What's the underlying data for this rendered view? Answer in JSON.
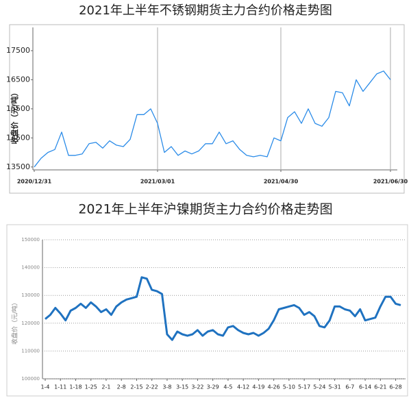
{
  "chart_data": [
    {
      "type": "line",
      "title": "2021年上半年不锈钢期货主力合约价格走势图",
      "ylabel": "收盘价（元/吨）",
      "color": "#2a8be8",
      "ylim": [
        13400,
        18300
      ],
      "yticks": [
        13500,
        14500,
        15500,
        16500,
        17500
      ],
      "grid": true,
      "categories": [
        "2020/12/31",
        null,
        null,
        null,
        null,
        null,
        null,
        null,
        null,
        null,
        null,
        null,
        null,
        null,
        null,
        null,
        null,
        null,
        "2021/03/01",
        null,
        null,
        null,
        null,
        null,
        null,
        null,
        null,
        null,
        null,
        null,
        null,
        null,
        null,
        null,
        null,
        null,
        "2021/04/30",
        null,
        null,
        null,
        null,
        null,
        null,
        null,
        null,
        null,
        null,
        null,
        null,
        null,
        null,
        null,
        "2021/06/30"
      ],
      "values": [
        13500,
        13800,
        14000,
        14100,
        14700,
        13900,
        13900,
        13950,
        14300,
        14350,
        14150,
        14400,
        14250,
        14200,
        14450,
        15300,
        15300,
        15500,
        15000,
        14000,
        14200,
        13900,
        14050,
        13950,
        14050,
        14300,
        14300,
        14700,
        14300,
        14400,
        14100,
        13900,
        13850,
        13900,
        13850,
        14500,
        14400,
        15200,
        15400,
        15000,
        15500,
        15000,
        14900,
        15200,
        16100,
        16050,
        15600,
        16500,
        16100,
        16400,
        16700,
        16800,
        16500
      ]
    },
    {
      "type": "line",
      "title": "2021年上半年沪镍期货主力合约价格走势图",
      "ylabel": "收盘价（元/吨）",
      "color": "#1f72c0",
      "ylim": [
        100000,
        150000
      ],
      "yticks": [
        100000,
        110000,
        120000,
        130000,
        140000,
        150000
      ],
      "grid": true,
      "categories": [
        "1-4",
        null,
        null,
        "1-11",
        null,
        null,
        "1-18",
        null,
        null,
        "1-25",
        null,
        null,
        "2-1",
        null,
        null,
        "2-8",
        null,
        null,
        "2-15",
        null,
        null,
        "2-22",
        null,
        null,
        "3-8",
        null,
        null,
        "3-15",
        null,
        null,
        "3-22",
        null,
        null,
        "3-29",
        null,
        null,
        "4-5",
        null,
        null,
        "4-12",
        null,
        null,
        "4-19",
        null,
        null,
        "4-26",
        null,
        null,
        "5-10",
        null,
        null,
        "5-17",
        null,
        null,
        "5-24",
        null,
        null,
        "5-31",
        null,
        null,
        "6-7",
        null,
        null,
        "6-14",
        null,
        null,
        "6-21",
        null,
        null,
        "6-28",
        null
      ],
      "values": [
        121500,
        123000,
        125500,
        123500,
        121000,
        124500,
        125500,
        127000,
        125500,
        127500,
        126000,
        124000,
        125000,
        123000,
        126000,
        127500,
        128500,
        129000,
        129500,
        136500,
        136000,
        132000,
        131500,
        130500,
        116000,
        114000,
        117000,
        116000,
        115500,
        116000,
        117500,
        115500,
        117000,
        117500,
        116000,
        115500,
        118500,
        119000,
        117500,
        116500,
        116000,
        116500,
        115500,
        116500,
        118000,
        121000,
        125000,
        125500,
        126000,
        126500,
        125500,
        123000,
        124000,
        122500,
        119000,
        118500,
        121000,
        126000,
        126000,
        125000,
        124500,
        122500,
        125000,
        121000,
        121500,
        122000,
        126000,
        129500,
        129500,
        127000,
        126500
      ]
    }
  ]
}
